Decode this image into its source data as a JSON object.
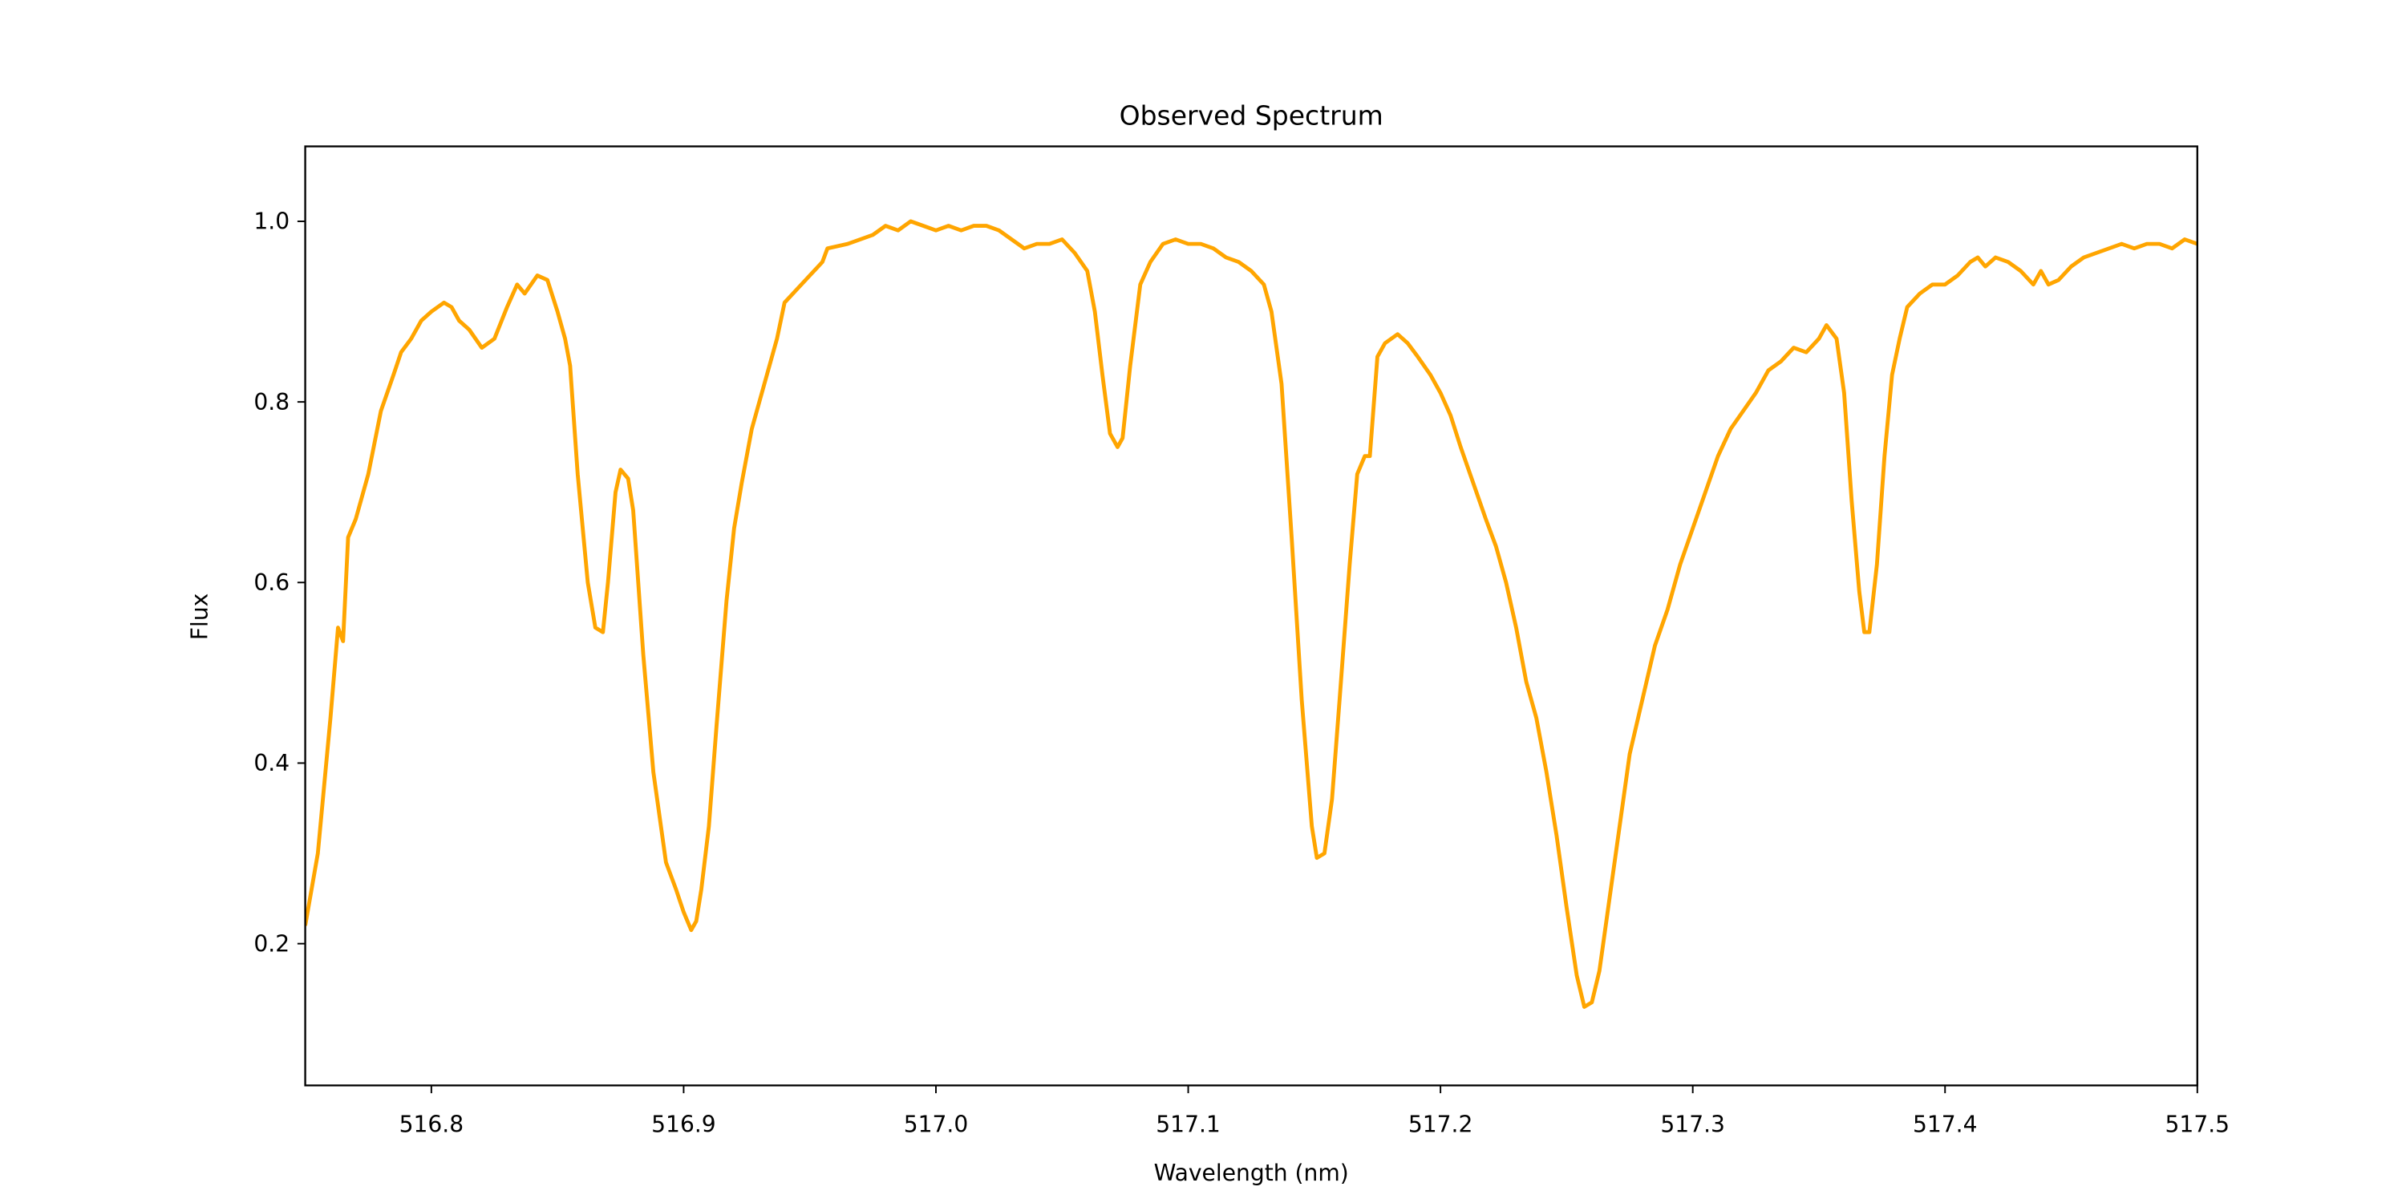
{
  "chart_data": {
    "type": "line",
    "title": "Observed Spectrum",
    "xlabel": "Wavelength (nm)",
    "ylabel": "Flux",
    "color": "#ffa500",
    "xlim": [
      516.75,
      517.5
    ],
    "ylim": [
      0.043,
      1.083
    ],
    "xticks": [
      516.8,
      516.9,
      {
        "value": 517,
        "label": "517.0"
      },
      517.1,
      517.2,
      517.3,
      517.4,
      517.5
    ],
    "yticks": [
      0.2,
      0.4,
      0.6,
      0.8,
      {
        "value": 1,
        "label": "1.0"
      }
    ],
    "x": [
      516.75,
      516.755,
      516.76,
      516.763,
      516.765,
      516.767,
      516.77,
      516.775,
      516.78,
      516.785,
      516.788,
      516.792,
      516.796,
      516.8,
      516.805,
      516.808,
      516.811,
      516.815,
      516.82,
      516.825,
      516.83,
      516.834,
      516.837,
      516.842,
      516.846,
      516.85,
      516.853,
      516.855,
      516.858,
      516.862,
      516.865,
      516.868,
      516.87,
      516.873,
      516.875,
      516.878,
      516.88,
      516.884,
      516.888,
      516.891,
      516.893,
      516.897,
      516.9,
      516.903,
      516.905,
      516.907,
      516.91,
      516.913,
      516.917,
      516.92,
      516.923,
      516.927,
      516.933,
      516.937,
      516.94,
      516.945,
      516.95,
      516.955,
      516.957,
      516.965,
      516.975,
      516.98,
      516.985,
      516.99,
      516.995,
      517.0,
      517.005,
      517.01,
      517.015,
      517.02,
      517.025,
      517.03,
      517.035,
      517.04,
      517.045,
      517.05,
      517.055,
      517.06,
      517.063,
      517.066,
      517.069,
      517.072,
      517.074,
      517.077,
      517.081,
      517.085,
      517.09,
      517.095,
      517.1,
      517.105,
      517.11,
      517.115,
      517.12,
      517.125,
      517.13,
      517.133,
      517.137,
      517.141,
      517.145,
      517.149,
      517.151,
      517.154,
      517.157,
      517.16,
      517.164,
      517.167,
      517.17,
      517.172,
      517.175,
      517.178,
      517.183,
      517.187,
      517.191,
      517.196,
      517.2,
      517.204,
      517.208,
      517.213,
      517.218,
      517.222,
      517.226,
      517.23,
      517.234,
      517.238,
      517.242,
      517.246,
      517.25,
      517.254,
      517.257,
      517.26,
      517.263,
      517.267,
      517.271,
      517.275,
      517.28,
      517.285,
      517.29,
      517.295,
      517.3,
      517.305,
      517.31,
      517.315,
      517.32,
      517.325,
      517.33,
      517.335,
      517.34,
      517.345,
      517.35,
      517.353,
      517.357,
      517.36,
      517.363,
      517.366,
      517.368,
      517.37,
      517.373,
      517.376,
      517.379,
      517.382,
      517.385,
      517.39,
      517.395,
      517.4,
      517.405,
      517.41,
      517.413,
      517.416,
      517.42,
      517.425,
      517.43,
      517.435,
      517.438,
      517.441,
      517.445,
      517.45,
      517.455,
      517.46,
      517.465,
      517.47,
      517.475,
      517.48,
      517.485,
      517.49,
      517.495,
      517.5
    ],
    "values": [
      0.22,
      0.3,
      0.45,
      0.55,
      0.535,
      0.65,
      0.67,
      0.72,
      0.79,
      0.83,
      0.855,
      0.87,
      0.89,
      0.9,
      0.91,
      0.905,
      0.89,
      0.88,
      0.86,
      0.87,
      0.905,
      0.93,
      0.92,
      0.94,
      0.935,
      0.9,
      0.87,
      0.84,
      0.72,
      0.6,
      0.55,
      0.545,
      0.6,
      0.7,
      0.725,
      0.715,
      0.68,
      0.52,
      0.39,
      0.33,
      0.29,
      0.26,
      0.235,
      0.215,
      0.225,
      0.26,
      0.33,
      0.44,
      0.58,
      0.66,
      0.71,
      0.77,
      0.83,
      0.87,
      0.91,
      0.925,
      0.94,
      0.955,
      0.97,
      0.975,
      0.985,
      0.995,
      0.99,
      1.0,
      0.995,
      0.99,
      0.995,
      0.99,
      0.995,
      0.995,
      0.99,
      0.98,
      0.97,
      0.975,
      0.975,
      0.98,
      0.965,
      0.945,
      0.9,
      0.83,
      0.765,
      0.75,
      0.76,
      0.84,
      0.93,
      0.955,
      0.975,
      0.98,
      0.975,
      0.975,
      0.97,
      0.96,
      0.955,
      0.945,
      0.93,
      0.9,
      0.82,
      0.65,
      0.47,
      0.33,
      0.295,
      0.3,
      0.36,
      0.47,
      0.62,
      0.72,
      0.74,
      0.74,
      0.85,
      0.865,
      0.875,
      0.865,
      0.85,
      0.83,
      0.81,
      0.785,
      0.75,
      0.71,
      0.67,
      0.64,
      0.6,
      0.55,
      0.49,
      0.45,
      0.39,
      0.32,
      0.24,
      0.165,
      0.13,
      0.135,
      0.17,
      0.25,
      0.33,
      0.41,
      0.47,
      0.53,
      0.57,
      0.62,
      0.66,
      0.7,
      0.74,
      0.77,
      0.79,
      0.81,
      0.835,
      0.845,
      0.86,
      0.855,
      0.87,
      0.885,
      0.87,
      0.81,
      0.69,
      0.59,
      0.545,
      0.545,
      0.62,
      0.74,
      0.83,
      0.87,
      0.905,
      0.92,
      0.93,
      0.93,
      0.94,
      0.955,
      0.96,
      0.95,
      0.96,
      0.955,
      0.945,
      0.93,
      0.945,
      0.93,
      0.935,
      0.95,
      0.96,
      0.965,
      0.97,
      0.975,
      0.97,
      0.975,
      0.975,
      0.97,
      0.98,
      0.975
    ]
  }
}
